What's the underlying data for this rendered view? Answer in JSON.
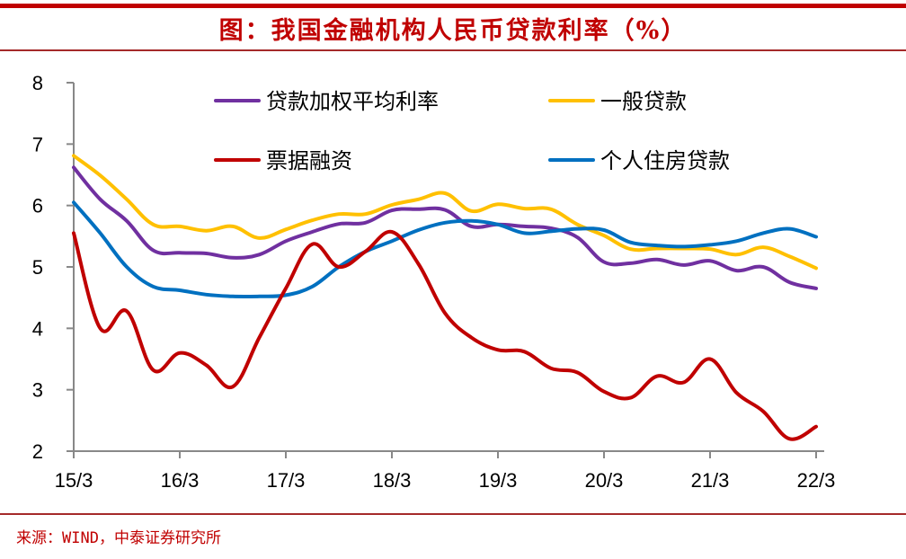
{
  "header": {
    "title": "图：我国金融机构人民币贷款利率（%）"
  },
  "footer": {
    "source": "来源：WIND，中泰证券研究所"
  },
  "chart_data": {
    "type": "line",
    "title": "我国金融机构人民币贷款利率（%）",
    "xlabel": "",
    "ylabel": "",
    "ylim": [
      2,
      8
    ],
    "yticks": [
      2,
      3,
      4,
      5,
      6,
      7,
      8
    ],
    "xtick_labels": [
      "15/3",
      "16/3",
      "17/3",
      "18/3",
      "19/3",
      "20/3",
      "21/3",
      "22/3"
    ],
    "x": [
      "15Q1",
      "15Q2",
      "15Q3",
      "15Q4",
      "16Q1",
      "16Q2",
      "16Q3",
      "16Q4",
      "17Q1",
      "17Q2",
      "17Q3",
      "17Q4",
      "18Q1",
      "18Q2",
      "18Q3",
      "18Q4",
      "19Q1",
      "19Q2",
      "19Q3",
      "19Q4",
      "20Q1",
      "20Q2",
      "20Q3",
      "20Q4",
      "21Q1",
      "21Q2",
      "21Q3",
      "21Q4",
      "22Q1"
    ],
    "grid": false,
    "legend_position": "top",
    "series": [
      {
        "name": "贷款加权平均利率",
        "color": "#7030a0",
        "values": [
          6.62,
          6.1,
          5.75,
          5.27,
          5.23,
          5.22,
          5.15,
          5.2,
          5.42,
          5.57,
          5.7,
          5.72,
          5.92,
          5.94,
          5.93,
          5.66,
          5.69,
          5.66,
          5.63,
          5.48,
          5.08,
          5.06,
          5.12,
          5.03,
          5.1,
          4.94,
          5.0,
          4.75,
          4.65
        ]
      },
      {
        "name": "一般贷款",
        "color": "#ffc000",
        "values": [
          6.81,
          6.49,
          6.1,
          5.69,
          5.66,
          5.59,
          5.66,
          5.47,
          5.61,
          5.76,
          5.86,
          5.86,
          6.01,
          6.1,
          6.2,
          5.91,
          6.02,
          5.95,
          5.94,
          5.69,
          5.51,
          5.29,
          5.3,
          5.3,
          5.29,
          5.2,
          5.32,
          5.17,
          4.98
        ]
      },
      {
        "name": "票据融资",
        "color": "#c00000",
        "values": [
          5.55,
          4.0,
          4.28,
          3.32,
          3.6,
          3.4,
          3.05,
          3.85,
          4.65,
          5.37,
          5.0,
          5.25,
          5.57,
          5.05,
          4.25,
          3.85,
          3.65,
          3.62,
          3.35,
          3.28,
          2.97,
          2.87,
          3.22,
          3.12,
          3.5,
          2.95,
          2.65,
          2.2,
          2.4
        ]
      },
      {
        "name": "个人住房贷款",
        "color": "#0070c0",
        "values": [
          6.05,
          5.55,
          5.0,
          4.68,
          4.62,
          4.55,
          4.52,
          4.52,
          4.54,
          4.68,
          5.0,
          5.25,
          5.42,
          5.6,
          5.72,
          5.75,
          5.69,
          5.55,
          5.58,
          5.62,
          5.6,
          5.4,
          5.35,
          5.33,
          5.36,
          5.42,
          5.55,
          5.62,
          5.49
        ]
      }
    ]
  }
}
